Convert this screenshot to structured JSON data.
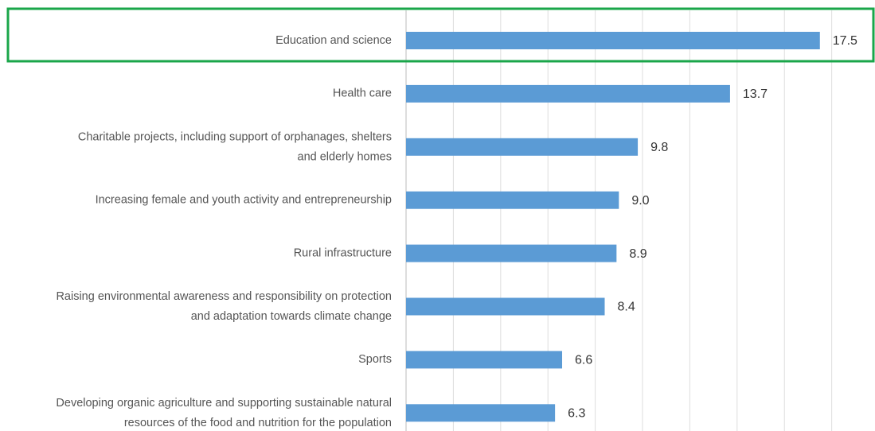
{
  "chart_data": {
    "type": "barh",
    "categories": [
      "Education and science",
      "Health care",
      "Charitable projects, including support of orphanages, shelters\nand elderly homes",
      "Increasing female and youth activity and entrepreneurship",
      "Rural infrastructure",
      "Raising environmental awareness and responsibility on protection\nand adaptation towards climate change",
      "Sports",
      "Developing organic agriculture and supporting sustainable natural\nresources of the food and nutrition for the population"
    ],
    "values": [
      17.5,
      13.7,
      9.8,
      9.0,
      8.9,
      8.4,
      6.6,
      6.3
    ],
    "value_labels": [
      "17.5",
      "13.7",
      "9.8",
      "9.0",
      "8.9",
      "8.4",
      "6.6",
      "6.3"
    ],
    "color": "#5b9bd5",
    "xlim": [
      0,
      19.8
    ],
    "xticks": [
      0,
      2,
      4,
      6,
      8,
      10,
      12,
      14,
      16,
      18
    ],
    "grid": true
  }
}
